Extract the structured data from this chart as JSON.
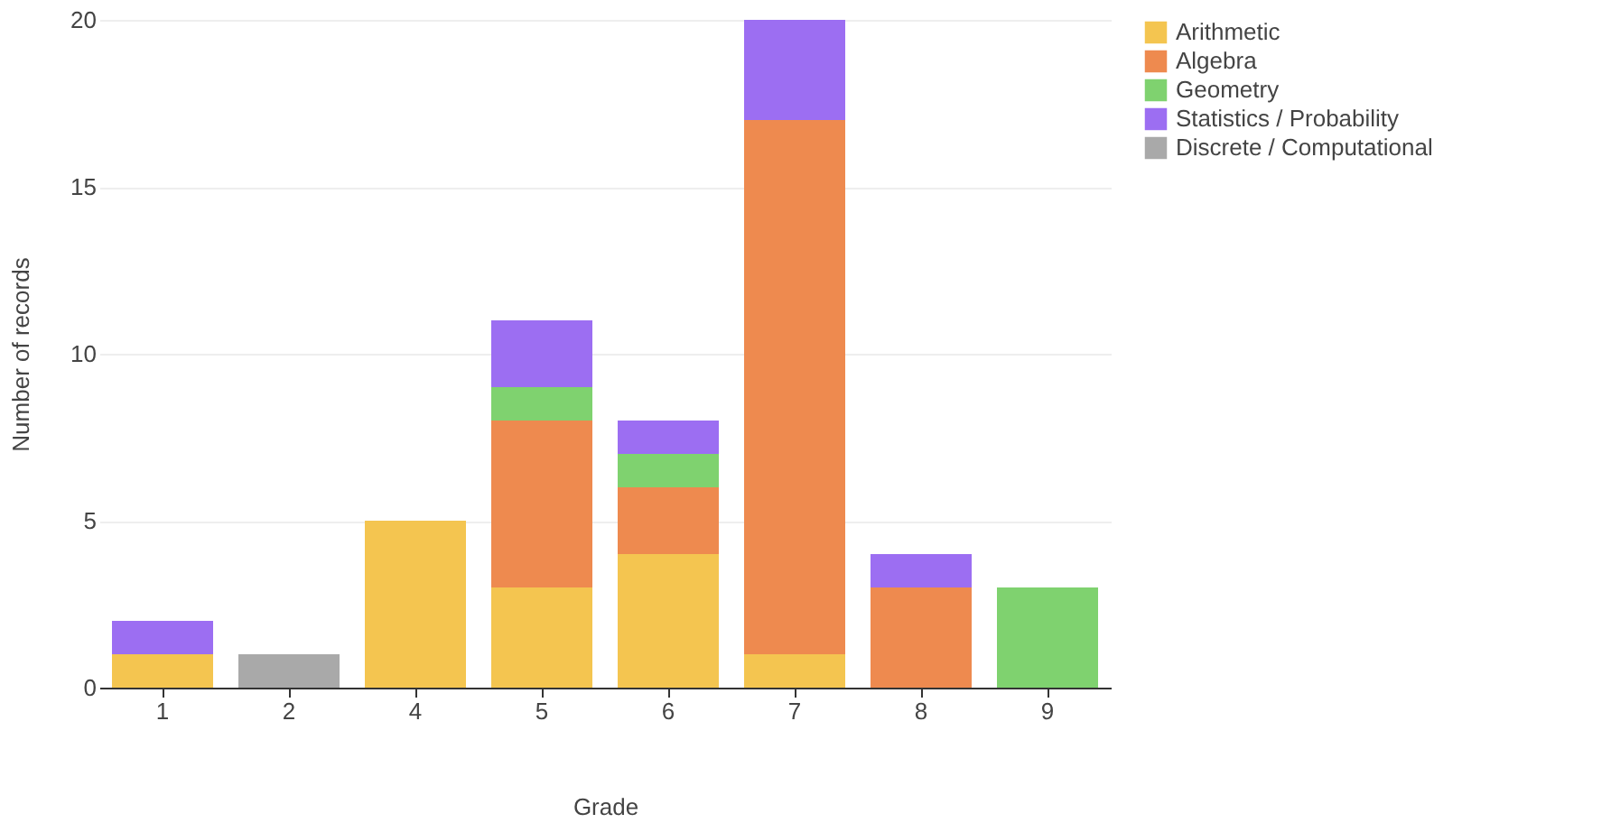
{
  "chart_data": {
    "type": "bar",
    "stacked": true,
    "xlabel": "Grade",
    "ylabel": "Number of records",
    "categories": [
      "1",
      "2",
      "4",
      "5",
      "6",
      "7",
      "8",
      "9"
    ],
    "series": [
      {
        "name": "Arithmetic",
        "color": "#f4c550",
        "values": [
          1,
          0,
          5,
          3,
          4,
          1,
          0,
          0
        ]
      },
      {
        "name": "Algebra",
        "color": "#ee8a4f",
        "values": [
          0,
          0,
          0,
          5,
          2,
          16,
          3,
          0
        ]
      },
      {
        "name": "Geometry",
        "color": "#7fd26f",
        "values": [
          0,
          0,
          0,
          1,
          1,
          0,
          0,
          3
        ]
      },
      {
        "name": "Statistics / Probability",
        "color": "#9c6ef2",
        "values": [
          1,
          0,
          0,
          2,
          1,
          3,
          1,
          0
        ]
      },
      {
        "name": "Discrete / Computational",
        "color": "#a9a9a9",
        "values": [
          0,
          1,
          0,
          0,
          0,
          0,
          0,
          0
        ]
      }
    ],
    "ylim": [
      0,
      20
    ],
    "yticks": [
      0,
      5,
      10,
      15,
      20
    ],
    "grid": "y",
    "legend": "right"
  }
}
